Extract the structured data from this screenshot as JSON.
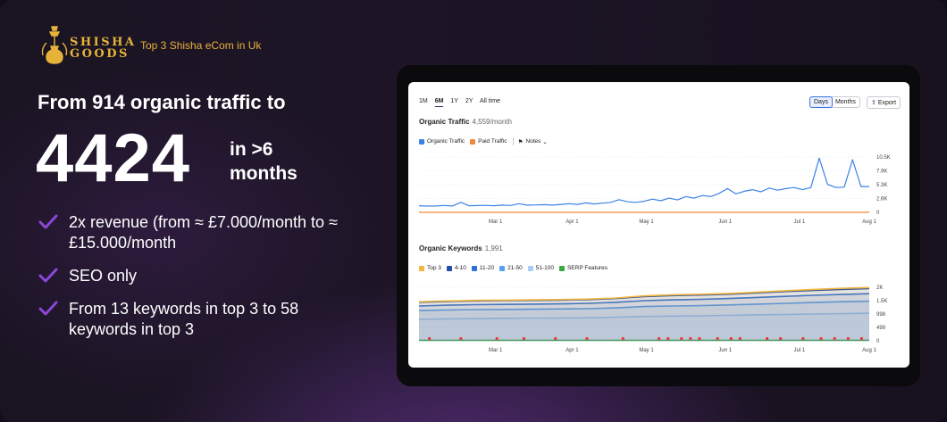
{
  "brand": {
    "logo_line1": "SHISHA",
    "logo_line2": "GOODS",
    "tagline": "Top 3 Shisha eCom in Uk",
    "accent": "#e9b23c"
  },
  "headline": "From 914 organic traffic to",
  "big_number": "4424",
  "big_suffix": "in >6 months",
  "bullets": [
    {
      "text": "2x revenue (from ≈ £7.000/month to ≈ £15.000/month",
      "icon": "check-icon"
    },
    {
      "text": "SEO only",
      "icon": "check-icon"
    },
    {
      "text": "From 13 keywords in top 3 to 58 keywords in top 3",
      "icon": "check-icon"
    }
  ],
  "colors": {
    "check": "#8b47d8",
    "background": "#1a1422"
  },
  "dashboard": {
    "ranges": [
      "1M",
      "6M",
      "1Y",
      "2Y",
      "All time"
    ],
    "active_range": "6M",
    "granularity": [
      "Days",
      "Months"
    ],
    "active_granularity": "Days",
    "export_label": "Export",
    "traffic": {
      "title": "Organic Traffic",
      "subtitle": "4,559/month",
      "legend": [
        {
          "label": "Organic Traffic",
          "color": "#3b82e8"
        },
        {
          "label": "Paid Traffic",
          "color": "#f0883a"
        }
      ],
      "notes_label": "Notes"
    },
    "keywords": {
      "title": "Organic Keywords",
      "subtitle": "1,991",
      "legend": [
        {
          "label": "Top 3",
          "color": "#f3b63f"
        },
        {
          "label": "4-10",
          "color": "#1f4fa8"
        },
        {
          "label": "11-20",
          "color": "#2f6fd6"
        },
        {
          "label": "21-50",
          "color": "#5aa0ee"
        },
        {
          "label": "51-100",
          "color": "#a6cdf5"
        },
        {
          "label": "SERP Features",
          "color": "#3aa843"
        }
      ]
    }
  },
  "chart_data": [
    {
      "type": "line",
      "title": "Organic Traffic",
      "x_ticks": [
        "Mar 1",
        "Apr 1",
        "May 1",
        "Jun 1",
        "Jul 1",
        "Aug 1"
      ],
      "y_ticks": [
        "10.5K",
        "7.9K",
        "5.3K",
        "2.6K",
        "0"
      ],
      "ylim": [
        0,
        10500
      ],
      "grid": true,
      "series": [
        {
          "name": "Organic Traffic",
          "color": "#3b82e8",
          "values": [
            1250,
            1180,
            1200,
            1300,
            1200,
            1900,
            1250,
            1280,
            1320,
            1250,
            1380,
            1300,
            1650,
            1350,
            1400,
            1450,
            1380,
            1500,
            1650,
            1500,
            1800,
            1600,
            1750,
            1900,
            2400,
            2000,
            1900,
            2100,
            2500,
            2200,
            2700,
            2350,
            3000,
            2700,
            3200,
            3000,
            3600,
            4500,
            3500,
            4000,
            4300,
            3900,
            4600,
            4200,
            4500,
            4700,
            4300,
            4700,
            10300,
            5300,
            4700,
            4800,
            10000,
            4900,
            4900
          ]
        },
        {
          "name": "Paid Traffic",
          "color": "#f0883a",
          "values": [
            0,
            0,
            0,
            0,
            0,
            0,
            0,
            0,
            0,
            0,
            0,
            0,
            0,
            0,
            0,
            0,
            0,
            0,
            0,
            0,
            0,
            0,
            0,
            0,
            0,
            0,
            0,
            0,
            0,
            0,
            0,
            0,
            0,
            0,
            0,
            0,
            0,
            0,
            0,
            0,
            0,
            0,
            0,
            0,
            0,
            0,
            0,
            0,
            0,
            0,
            0,
            0,
            0,
            0,
            0
          ]
        }
      ]
    },
    {
      "type": "area",
      "title": "Organic Keywords",
      "x_ticks": [
        "Mar 1",
        "Apr 1",
        "May 1",
        "Jun 1",
        "Jul 1",
        "Aug 1"
      ],
      "y_ticks": [
        "2K",
        "1.5K",
        "998",
        "499",
        "0"
      ],
      "ylim": [
        0,
        2000
      ],
      "grid": true,
      "series": [
        {
          "name": "Top 3",
          "color": "#f3b63f",
          "values": [
            1460,
            1490,
            1510,
            1520,
            1530,
            1540,
            1560,
            1600,
            1680,
            1720,
            1740,
            1770,
            1820,
            1870,
            1920,
            1960,
            1991
          ]
        },
        {
          "name": "4-10",
          "color": "#1f4fa8",
          "values": [
            1440,
            1470,
            1490,
            1500,
            1510,
            1520,
            1540,
            1580,
            1650,
            1690,
            1710,
            1740,
            1790,
            1840,
            1880,
            1920,
            1950
          ]
        },
        {
          "name": "11-20",
          "color": "#2f6fd6",
          "values": [
            1300,
            1330,
            1350,
            1360,
            1370,
            1380,
            1400,
            1440,
            1500,
            1530,
            1550,
            1580,
            1620,
            1660,
            1700,
            1730,
            1760
          ]
        },
        {
          "name": "21-50",
          "color": "#5aa0ee",
          "values": [
            1130,
            1150,
            1165,
            1170,
            1180,
            1190,
            1200,
            1230,
            1280,
            1300,
            1315,
            1340,
            1370,
            1400,
            1430,
            1460,
            1480
          ]
        },
        {
          "name": "51-100",
          "color": "#a6cdf5",
          "values": [
            800,
            820,
            830,
            840,
            850,
            855,
            860,
            880,
            910,
            925,
            935,
            950,
            970,
            985,
            1000,
            1015,
            1030
          ]
        },
        {
          "name": "SERP Features",
          "color": "#3aa843",
          "values": [
            20,
            20,
            20,
            20,
            20,
            20,
            20,
            20,
            20,
            20,
            20,
            20,
            20,
            20,
            20,
            20,
            20
          ]
        }
      ]
    }
  ]
}
